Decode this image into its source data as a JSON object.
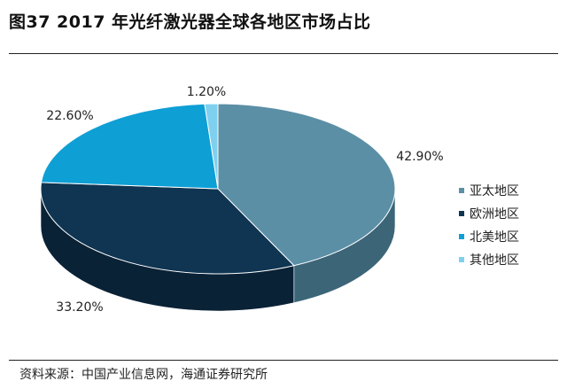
{
  "title": "图37 2017 年光纤激光器全球各地区市场占比",
  "source": "资料来源：中国产业信息网，海通证券研究所",
  "chart_data": {
    "type": "pie",
    "categories": [
      "亚太地区",
      "欧洲地区",
      "北美地区",
      "其他地区"
    ],
    "values": [
      42.9,
      33.2,
      22.6,
      1.2
    ],
    "labels": [
      "42.90%",
      "33.20%",
      "22.60%",
      "1.20%"
    ],
    "colors": [
      "#5b8fa6",
      "#0f3552",
      "#0e9fd5",
      "#7fd0ef"
    ],
    "side_colors": [
      "#3c6578",
      "#0a2236",
      "#0a6f95",
      "#5aa6c4"
    ],
    "legend": "right",
    "style": "3d"
  }
}
